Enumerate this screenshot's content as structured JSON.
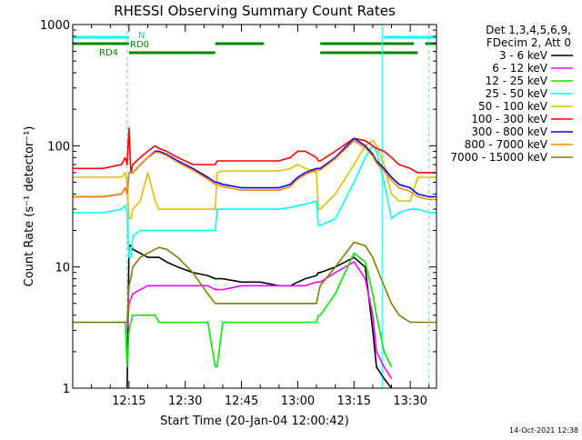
{
  "chart_data": {
    "type": "line",
    "title": "RHESSI Observing Summary Count Rates",
    "xlabel": "Start Time (20-Jan-04 12:00:42)",
    "ylabel": "Count Rate (s⁻¹ detector⁻¹)",
    "yscale": "log",
    "ylim": [
      1,
      1000
    ],
    "xlim_minutes": [
      0,
      97
    ],
    "y_ticks": [
      {
        "v": 1,
        "label": "1"
      },
      {
        "v": 10,
        "label": "10"
      },
      {
        "v": 100,
        "label": "100"
      },
      {
        "v": 1000,
        "label": "1000"
      }
    ],
    "x_ticks": [
      {
        "m": 15,
        "label": "12:15"
      },
      {
        "m": 30,
        "label": "12:30"
      },
      {
        "m": 45,
        "label": "12:45"
      },
      {
        "m": 60,
        "label": "13:00"
      },
      {
        "m": 75,
        "label": "13:15"
      },
      {
        "m": 90,
        "label": "13:30"
      }
    ],
    "legend_header": [
      "Det 1,3,4,5,6,9,",
      "FDecim 2, Att 0"
    ],
    "footer_date": "14-Oct-2021 12:38",
    "markers": {
      "n_label": "N",
      "rd0_label": "RD0",
      "rd4_label": "RD4"
    },
    "flag_bars": {
      "n_cyan": [
        [
          0,
          15
        ],
        [
          83,
          97
        ]
      ],
      "rd0_green": [
        [
          0,
          15
        ],
        [
          38,
          51
        ],
        [
          66,
          91
        ],
        [
          94,
          97
        ]
      ],
      "rd4_green": [
        [
          15,
          38
        ],
        [
          66,
          92
        ]
      ]
    },
    "vertical_lines": [
      {
        "m": 14.5,
        "style": "dashed"
      },
      {
        "m": 82.5,
        "style": "solid"
      },
      {
        "m": 95,
        "style": "dashed"
      }
    ],
    "x_minutes": [
      0,
      8,
      13,
      14,
      14.5,
      15,
      15.5,
      16,
      18,
      20,
      22,
      23,
      25,
      28,
      32,
      36,
      38,
      38.5,
      40,
      45,
      50,
      55,
      58,
      60,
      62,
      65,
      65.5,
      66,
      70,
      75,
      78,
      80,
      81,
      83,
      85,
      87,
      90,
      92,
      95,
      97
    ],
    "series": [
      {
        "name": "3 - 6 keV",
        "color": "#000000",
        "values": [
          null,
          null,
          null,
          null,
          1.0,
          15,
          15,
          14,
          13,
          12,
          12,
          12,
          11,
          10,
          9,
          8.5,
          8,
          8,
          8,
          7.5,
          7.5,
          7,
          7,
          7.5,
          8,
          8.5,
          9,
          9,
          10,
          12,
          10,
          3,
          1.5,
          1.2,
          1.0,
          null,
          null,
          null,
          null,
          null
        ]
      },
      {
        "name": "6 - 12 keV",
        "color": "#ff00ff",
        "values": [
          null,
          null,
          null,
          null,
          3.0,
          5,
          5.5,
          6,
          6.5,
          7,
          7,
          7,
          7,
          7,
          7,
          7,
          6.5,
          6.5,
          6.5,
          7,
          7,
          7,
          7,
          7,
          7,
          7.5,
          7.5,
          7.5,
          9,
          11,
          8,
          4,
          2,
          1.5,
          1.2,
          null,
          null,
          null,
          null,
          null
        ]
      },
      {
        "name": "12 - 25 keV",
        "color": "#00ee00",
        "values": [
          3.5,
          3.5,
          3.5,
          3.5,
          1.5,
          3,
          3.5,
          4,
          4,
          4,
          4,
          3.5,
          3.5,
          3.5,
          3.5,
          3.5,
          1.5,
          1.5,
          3.5,
          3.5,
          3.5,
          3.5,
          3.5,
          3.5,
          3.5,
          3.5,
          4,
          4,
          6,
          13,
          11,
          6,
          4,
          2,
          1.5,
          null,
          null,
          null,
          null,
          null
        ]
      },
      {
        "name": "25 - 50 keV",
        "color": "#00ffff",
        "values": [
          28,
          28,
          30,
          32,
          28,
          12,
          12,
          18,
          20,
          20,
          20,
          20,
          20,
          20,
          20,
          20,
          20,
          30,
          30,
          30,
          30,
          30,
          31,
          32,
          33,
          35,
          22,
          22,
          25,
          50,
          80,
          100,
          90,
          50,
          25,
          28,
          30,
          30,
          28,
          28
        ]
      },
      {
        "name": "50 - 100 keV",
        "color": "#e0c000",
        "values": [
          55,
          55,
          55,
          60,
          50,
          25,
          25,
          30,
          35,
          60,
          35,
          30,
          30,
          30,
          30,
          30,
          30,
          60,
          62,
          62,
          62,
          62,
          65,
          70,
          65,
          60,
          30,
          30,
          40,
          70,
          100,
          110,
          100,
          70,
          40,
          35,
          35,
          55,
          55,
          55
        ]
      },
      {
        "name": "100 - 300 keV",
        "color": "#ff0000",
        "values": [
          65,
          65,
          70,
          80,
          70,
          140,
          60,
          70,
          80,
          90,
          100,
          95,
          90,
          80,
          70,
          70,
          70,
          75,
          75,
          75,
          75,
          75,
          80,
          90,
          90,
          80,
          75,
          75,
          90,
          115,
          110,
          100,
          95,
          90,
          80,
          70,
          65,
          60,
          60,
          60
        ]
      },
      {
        "name": "300 - 800 keV",
        "color": "#0000ff",
        "values": [
          38,
          38,
          40,
          45,
          40,
          60,
          60,
          60,
          70,
          80,
          90,
          90,
          85,
          75,
          65,
          55,
          50,
          50,
          48,
          45,
          45,
          45,
          48,
          55,
          60,
          65,
          65,
          65,
          80,
          115,
          100,
          85,
          75,
          65,
          55,
          48,
          45,
          40,
          38,
          38
        ]
      },
      {
        "name": "800 - 7000 keV",
        "color": "#ff8800",
        "values": [
          38,
          38,
          40,
          45,
          40,
          60,
          60,
          60,
          70,
          80,
          88,
          88,
          83,
          73,
          63,
          53,
          48,
          48,
          46,
          43,
          43,
          43,
          46,
          53,
          58,
          63,
          63,
          63,
          78,
          110,
          96,
          82,
          72,
          62,
          52,
          45,
          42,
          38,
          36,
          36
        ]
      },
      {
        "name": "7000 - 15000 keV",
        "color": "#808000",
        "values": [
          3.5,
          3.5,
          3.5,
          3.5,
          3.5,
          7,
          8,
          10,
          12,
          13,
          14,
          14.5,
          14,
          12,
          9,
          6,
          5,
          5,
          5,
          5,
          5,
          5,
          5,
          5,
          5,
          5,
          6,
          7,
          10,
          16,
          15,
          12,
          10,
          7,
          5,
          4,
          3.5,
          3.5,
          3.5,
          3.5
        ]
      }
    ]
  }
}
